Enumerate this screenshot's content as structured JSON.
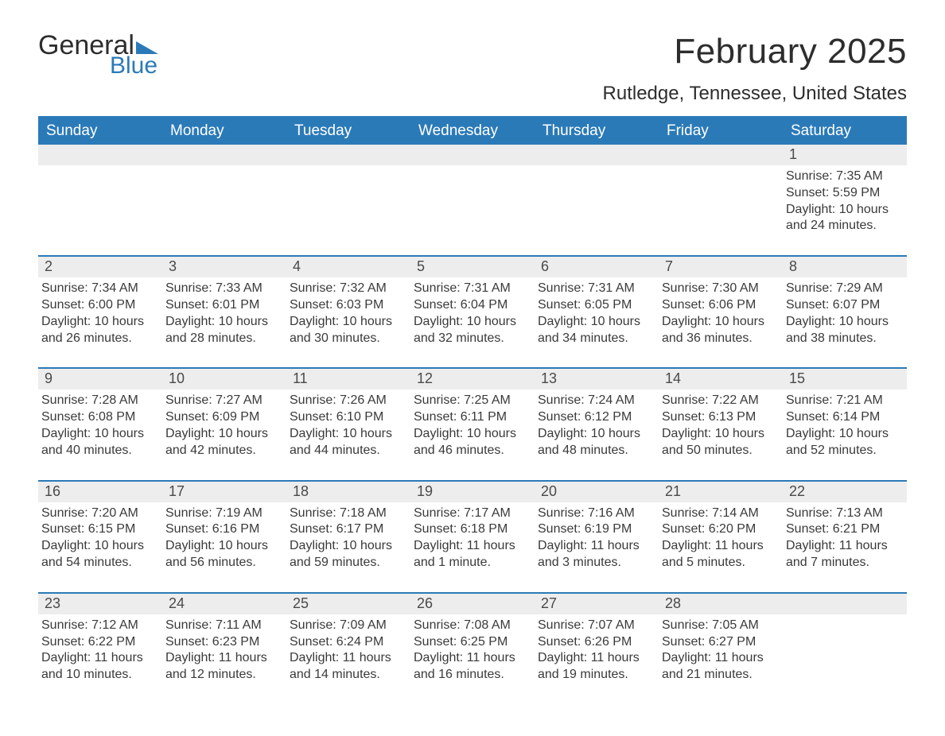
{
  "logo": {
    "word1": "General",
    "word2": "Blue",
    "flag_color": "#2b7ab8"
  },
  "title": "February 2025",
  "location": "Rutledge, Tennessee, United States",
  "colors": {
    "header_bg": "#2b7ab8",
    "header_text": "#ffffff",
    "daynum_bg": "#ededed",
    "rule": "#2b7ab8",
    "body_text": "#3a3a3a"
  },
  "weekdays": [
    "Sunday",
    "Monday",
    "Tuesday",
    "Wednesday",
    "Thursday",
    "Friday",
    "Saturday"
  ],
  "weeks": [
    [
      null,
      null,
      null,
      null,
      null,
      null,
      {
        "n": "1",
        "sunrise": "Sunrise: 7:35 AM",
        "sunset": "Sunset: 5:59 PM",
        "daylight": "Daylight: 10 hours and 24 minutes."
      }
    ],
    [
      {
        "n": "2",
        "sunrise": "Sunrise: 7:34 AM",
        "sunset": "Sunset: 6:00 PM",
        "daylight": "Daylight: 10 hours and 26 minutes."
      },
      {
        "n": "3",
        "sunrise": "Sunrise: 7:33 AM",
        "sunset": "Sunset: 6:01 PM",
        "daylight": "Daylight: 10 hours and 28 minutes."
      },
      {
        "n": "4",
        "sunrise": "Sunrise: 7:32 AM",
        "sunset": "Sunset: 6:03 PM",
        "daylight": "Daylight: 10 hours and 30 minutes."
      },
      {
        "n": "5",
        "sunrise": "Sunrise: 7:31 AM",
        "sunset": "Sunset: 6:04 PM",
        "daylight": "Daylight: 10 hours and 32 minutes."
      },
      {
        "n": "6",
        "sunrise": "Sunrise: 7:31 AM",
        "sunset": "Sunset: 6:05 PM",
        "daylight": "Daylight: 10 hours and 34 minutes."
      },
      {
        "n": "7",
        "sunrise": "Sunrise: 7:30 AM",
        "sunset": "Sunset: 6:06 PM",
        "daylight": "Daylight: 10 hours and 36 minutes."
      },
      {
        "n": "8",
        "sunrise": "Sunrise: 7:29 AM",
        "sunset": "Sunset: 6:07 PM",
        "daylight": "Daylight: 10 hours and 38 minutes."
      }
    ],
    [
      {
        "n": "9",
        "sunrise": "Sunrise: 7:28 AM",
        "sunset": "Sunset: 6:08 PM",
        "daylight": "Daylight: 10 hours and 40 minutes."
      },
      {
        "n": "10",
        "sunrise": "Sunrise: 7:27 AM",
        "sunset": "Sunset: 6:09 PM",
        "daylight": "Daylight: 10 hours and 42 minutes."
      },
      {
        "n": "11",
        "sunrise": "Sunrise: 7:26 AM",
        "sunset": "Sunset: 6:10 PM",
        "daylight": "Daylight: 10 hours and 44 minutes."
      },
      {
        "n": "12",
        "sunrise": "Sunrise: 7:25 AM",
        "sunset": "Sunset: 6:11 PM",
        "daylight": "Daylight: 10 hours and 46 minutes."
      },
      {
        "n": "13",
        "sunrise": "Sunrise: 7:24 AM",
        "sunset": "Sunset: 6:12 PM",
        "daylight": "Daylight: 10 hours and 48 minutes."
      },
      {
        "n": "14",
        "sunrise": "Sunrise: 7:22 AM",
        "sunset": "Sunset: 6:13 PM",
        "daylight": "Daylight: 10 hours and 50 minutes."
      },
      {
        "n": "15",
        "sunrise": "Sunrise: 7:21 AM",
        "sunset": "Sunset: 6:14 PM",
        "daylight": "Daylight: 10 hours and 52 minutes."
      }
    ],
    [
      {
        "n": "16",
        "sunrise": "Sunrise: 7:20 AM",
        "sunset": "Sunset: 6:15 PM",
        "daylight": "Daylight: 10 hours and 54 minutes."
      },
      {
        "n": "17",
        "sunrise": "Sunrise: 7:19 AM",
        "sunset": "Sunset: 6:16 PM",
        "daylight": "Daylight: 10 hours and 56 minutes."
      },
      {
        "n": "18",
        "sunrise": "Sunrise: 7:18 AM",
        "sunset": "Sunset: 6:17 PM",
        "daylight": "Daylight: 10 hours and 59 minutes."
      },
      {
        "n": "19",
        "sunrise": "Sunrise: 7:17 AM",
        "sunset": "Sunset: 6:18 PM",
        "daylight": "Daylight: 11 hours and 1 minute."
      },
      {
        "n": "20",
        "sunrise": "Sunrise: 7:16 AM",
        "sunset": "Sunset: 6:19 PM",
        "daylight": "Daylight: 11 hours and 3 minutes."
      },
      {
        "n": "21",
        "sunrise": "Sunrise: 7:14 AM",
        "sunset": "Sunset: 6:20 PM",
        "daylight": "Daylight: 11 hours and 5 minutes."
      },
      {
        "n": "22",
        "sunrise": "Sunrise: 7:13 AM",
        "sunset": "Sunset: 6:21 PM",
        "daylight": "Daylight: 11 hours and 7 minutes."
      }
    ],
    [
      {
        "n": "23",
        "sunrise": "Sunrise: 7:12 AM",
        "sunset": "Sunset: 6:22 PM",
        "daylight": "Daylight: 11 hours and 10 minutes."
      },
      {
        "n": "24",
        "sunrise": "Sunrise: 7:11 AM",
        "sunset": "Sunset: 6:23 PM",
        "daylight": "Daylight: 11 hours and 12 minutes."
      },
      {
        "n": "25",
        "sunrise": "Sunrise: 7:09 AM",
        "sunset": "Sunset: 6:24 PM",
        "daylight": "Daylight: 11 hours and 14 minutes."
      },
      {
        "n": "26",
        "sunrise": "Sunrise: 7:08 AM",
        "sunset": "Sunset: 6:25 PM",
        "daylight": "Daylight: 11 hours and 16 minutes."
      },
      {
        "n": "27",
        "sunrise": "Sunrise: 7:07 AM",
        "sunset": "Sunset: 6:26 PM",
        "daylight": "Daylight: 11 hours and 19 minutes."
      },
      {
        "n": "28",
        "sunrise": "Sunrise: 7:05 AM",
        "sunset": "Sunset: 6:27 PM",
        "daylight": "Daylight: 11 hours and 21 minutes."
      },
      null
    ]
  ]
}
